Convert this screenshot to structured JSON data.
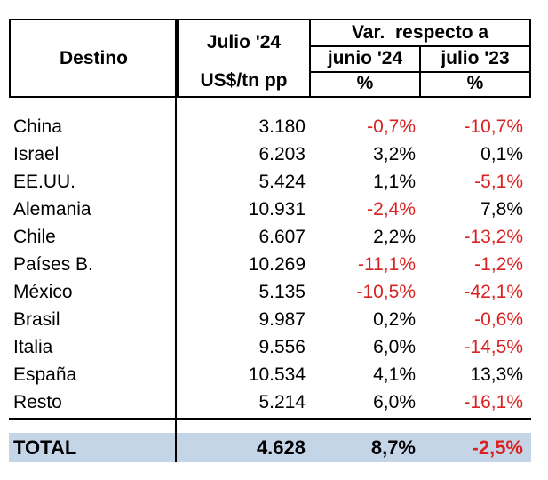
{
  "table": {
    "header": {
      "destino": "Destino",
      "julio24": "Julio '24",
      "unit": "US$/tn pp",
      "var_respecto": "Var.  respecto a",
      "junio24": "junio '24",
      "julio23": "julio '23",
      "pct1": "%",
      "pct2": "%"
    },
    "rows": [
      {
        "dest": "China",
        "value": "3.180",
        "var_junio": "-0,7%",
        "var_julio": "-10,7%"
      },
      {
        "dest": "Israel",
        "value": "6.203",
        "var_junio": "3,2%",
        "var_julio": "0,1%"
      },
      {
        "dest": "EE.UU.",
        "value": "5.424",
        "var_junio": "1,1%",
        "var_julio": "-5,1%"
      },
      {
        "dest": "Alemania",
        "value": "10.931",
        "var_junio": "-2,4%",
        "var_julio": "7,8%"
      },
      {
        "dest": "Chile",
        "value": "6.607",
        "var_junio": "2,2%",
        "var_julio": "-13,2%"
      },
      {
        "dest": "Países B.",
        "value": "10.269",
        "var_junio": "-11,1%",
        "var_julio": "-1,2%"
      },
      {
        "dest": "México",
        "value": "5.135",
        "var_junio": "-10,5%",
        "var_julio": "-42,1%"
      },
      {
        "dest": "Brasil",
        "value": "9.987",
        "var_junio": "0,2%",
        "var_julio": "-0,6%"
      },
      {
        "dest": "Italia",
        "value": "9.556",
        "var_junio": "6,0%",
        "var_julio": "-14,5%"
      },
      {
        "dest": "España",
        "value": "10.534",
        "var_junio": "4,1%",
        "var_julio": "13,3%"
      },
      {
        "dest": "Resto",
        "value": "5.214",
        "var_junio": "6,0%",
        "var_julio": "-16,1%"
      }
    ],
    "total": {
      "dest": "TOTAL",
      "value": "4.628",
      "var_junio": "8,7%",
      "var_julio": "-2,5%"
    }
  },
  "colors": {
    "negative": "#d92323",
    "total_bg": "#c5d5e8",
    "border": "#000000",
    "text": "#000000",
    "background": "#ffffff"
  },
  "chart_data": {
    "type": "table",
    "columns": [
      "Destino",
      "Julio '24 US$/tn pp",
      "Var. respecto a junio '24 (%)",
      "Var. respecto a julio '23 (%)"
    ],
    "rows": [
      [
        "China",
        3180,
        -0.7,
        -10.7
      ],
      [
        "Israel",
        6203,
        3.2,
        0.1
      ],
      [
        "EE.UU.",
        5424,
        1.1,
        -5.1
      ],
      [
        "Alemania",
        10931,
        -2.4,
        7.8
      ],
      [
        "Chile",
        6607,
        2.2,
        -13.2
      ],
      [
        "Países B.",
        10269,
        -11.1,
        -1.2
      ],
      [
        "México",
        5135,
        -10.5,
        -42.1
      ],
      [
        "Brasil",
        9987,
        0.2,
        -0.6
      ],
      [
        "Italia",
        9556,
        6.0,
        -14.5
      ],
      [
        "España",
        10534,
        4.1,
        13.3
      ],
      [
        "Resto",
        5214,
        6.0,
        -16.1
      ]
    ],
    "total_row": [
      "TOTAL",
      4628,
      8.7,
      -2.5
    ],
    "layout_hints": {
      "number_format": "es-AR (dot thousands separator, comma decimals)",
      "negative_values_color": "#d92323",
      "total_row_background": "#c5d5e8",
      "grid": "header fully boxed; body only has vertical divider after first column"
    }
  }
}
